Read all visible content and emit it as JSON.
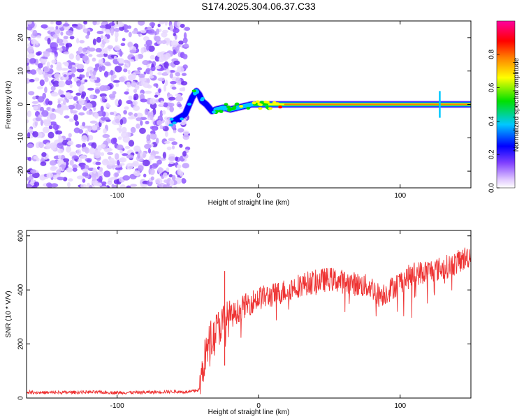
{
  "title": "S174.2025.304.06.37.C33",
  "chart_data": [
    {
      "type": "heatmap",
      "name": "spectrogram",
      "xlabel": "Height of straight line (km)",
      "ylabel": "Frequency (Hz)",
      "xlim": [
        -164,
        150
      ],
      "ylim": [
        -25,
        25
      ],
      "xticks": [
        -100,
        0,
        100
      ],
      "xtick_labels": [
        "-100",
        "0",
        "100"
      ],
      "yticks": [
        -20,
        -10,
        0,
        10,
        20
      ],
      "ytick_labels": [
        "-20",
        "-10",
        "0",
        "10",
        "20"
      ],
      "colorbar": {
        "label": "Normalized spectral amplitude",
        "range": [
          0,
          1
        ],
        "ticks": [
          0.0,
          0.2,
          0.4,
          0.6,
          0.8
        ],
        "tick_labels": [
          "0.0",
          "0.2",
          "0.4",
          "0.6",
          "0.8"
        ],
        "colors": [
          "#ffffff",
          "#a050ff",
          "#0000ff",
          "#00c8ff",
          "#00e000",
          "#ffff00",
          "#ff8000",
          "#ff0000",
          "#ff00a0"
        ]
      },
      "noise_region_x": [
        -164,
        -50
      ],
      "signal_track": {
        "x": [
          -60,
          -52,
          -47,
          -44,
          -42,
          -40,
          -37,
          -33,
          -30,
          -25,
          -20,
          -15,
          -10,
          -5,
          0,
          10,
          20,
          50,
          100,
          128,
          150
        ],
        "freq": [
          -5,
          -3,
          2,
          4,
          3,
          1,
          0,
          -2,
          -1.5,
          -1,
          -1.5,
          -1,
          -0.5,
          0,
          0,
          0,
          0,
          0,
          0,
          0,
          0
        ],
        "amplitude": [
          0.35,
          0.3,
          0.4,
          0.45,
          0.4,
          0.35,
          0.3,
          0.35,
          0.45,
          0.5,
          0.6,
          0.55,
          0.5,
          0.55,
          0.6,
          0.75,
          0.85,
          0.9,
          0.9,
          0.85,
          0.9
        ]
      }
    },
    {
      "type": "line",
      "name": "snr",
      "xlabel": "Height of straight line (km)",
      "ylabel": "SNR (10 * V/V)",
      "xlim": [
        -164,
        150
      ],
      "ylim": [
        0,
        620
      ],
      "xticks": [
        -100,
        0,
        100
      ],
      "xtick_labels": [
        "-100",
        "0",
        "100"
      ],
      "yticks": [
        0,
        200,
        400,
        600
      ],
      "ytick_labels": [
        "0",
        "200",
        "400",
        "600"
      ],
      "color": "#ee3333",
      "series": [
        {
          "name": "SNR",
          "x": [
            -164,
            -150,
            -120,
            -100,
            -80,
            -60,
            -50,
            -42,
            -38,
            -34,
            -30,
            -25,
            -20,
            -10,
            0,
            10,
            20,
            30,
            40,
            50,
            60,
            70,
            80,
            85,
            90,
            100,
            110,
            120,
            130,
            140,
            150
          ],
          "values": [
            22,
            20,
            22,
            20,
            21,
            24,
            22,
            30,
            150,
            220,
            250,
            280,
            300,
            340,
            370,
            380,
            400,
            420,
            430,
            440,
            430,
            420,
            410,
            380,
            390,
            430,
            460,
            470,
            480,
            500,
            530
          ]
        }
      ]
    }
  ]
}
